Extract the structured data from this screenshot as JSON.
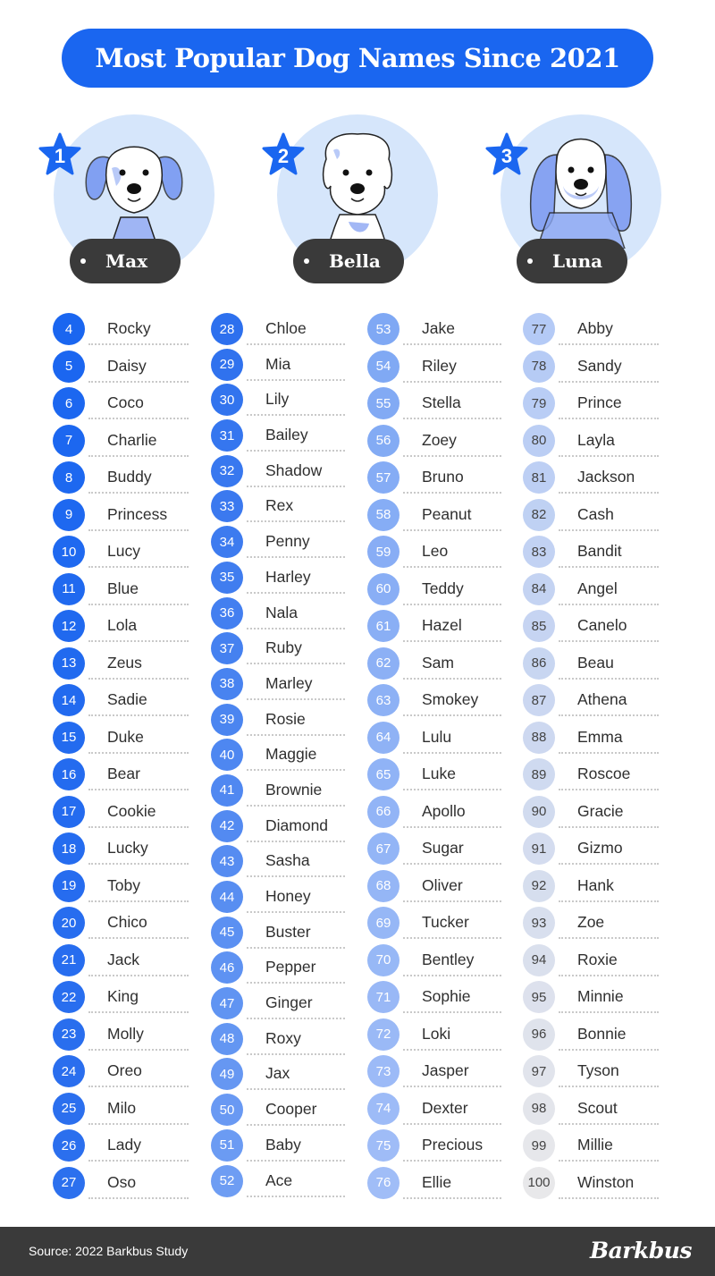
{
  "title": "Most Popular Dog Names Since 2021",
  "top3": [
    {
      "rank": "1",
      "name": "Max"
    },
    {
      "rank": "2",
      "name": "Bella"
    },
    {
      "rank": "3",
      "name": "Luna"
    }
  ],
  "columns": [
    [
      {
        "rank": "4",
        "name": "Rocky"
      },
      {
        "rank": "5",
        "name": "Daisy"
      },
      {
        "rank": "6",
        "name": "Coco"
      },
      {
        "rank": "7",
        "name": "Charlie"
      },
      {
        "rank": "8",
        "name": "Buddy"
      },
      {
        "rank": "9",
        "name": "Princess"
      },
      {
        "rank": "10",
        "name": "Lucy"
      },
      {
        "rank": "11",
        "name": "Blue"
      },
      {
        "rank": "12",
        "name": "Lola"
      },
      {
        "rank": "13",
        "name": "Zeus"
      },
      {
        "rank": "14",
        "name": "Sadie"
      },
      {
        "rank": "15",
        "name": "Duke"
      },
      {
        "rank": "16",
        "name": "Bear"
      },
      {
        "rank": "17",
        "name": "Cookie"
      },
      {
        "rank": "18",
        "name": "Lucky"
      },
      {
        "rank": "19",
        "name": "Toby"
      },
      {
        "rank": "20",
        "name": "Chico"
      },
      {
        "rank": "21",
        "name": "Jack"
      },
      {
        "rank": "22",
        "name": "King"
      },
      {
        "rank": "23",
        "name": "Molly"
      },
      {
        "rank": "24",
        "name": "Oreo"
      },
      {
        "rank": "25",
        "name": "Milo"
      },
      {
        "rank": "26",
        "name": "Lady"
      },
      {
        "rank": "27",
        "name": "Oso"
      }
    ],
    [
      {
        "rank": "28",
        "name": "Chloe"
      },
      {
        "rank": "29",
        "name": "Mia"
      },
      {
        "rank": "30",
        "name": "Lily"
      },
      {
        "rank": "31",
        "name": "Bailey"
      },
      {
        "rank": "32",
        "name": "Shadow"
      },
      {
        "rank": "33",
        "name": "Rex"
      },
      {
        "rank": "34",
        "name": "Penny"
      },
      {
        "rank": "35",
        "name": "Harley"
      },
      {
        "rank": "36",
        "name": "Nala"
      },
      {
        "rank": "37",
        "name": "Ruby"
      },
      {
        "rank": "38",
        "name": "Marley"
      },
      {
        "rank": "39",
        "name": "Rosie"
      },
      {
        "rank": "40",
        "name": "Maggie"
      },
      {
        "rank": "41",
        "name": "Brownie"
      },
      {
        "rank": "42",
        "name": "Diamond"
      },
      {
        "rank": "43",
        "name": "Sasha"
      },
      {
        "rank": "44",
        "name": "Honey"
      },
      {
        "rank": "45",
        "name": "Buster"
      },
      {
        "rank": "46",
        "name": "Pepper"
      },
      {
        "rank": "47",
        "name": "Ginger"
      },
      {
        "rank": "48",
        "name": "Roxy"
      },
      {
        "rank": "49",
        "name": "Jax"
      },
      {
        "rank": "50",
        "name": "Cooper"
      },
      {
        "rank": "51",
        "name": "Baby"
      },
      {
        "rank": "52",
        "name": "Ace"
      }
    ],
    [
      {
        "rank": "53",
        "name": "Jake"
      },
      {
        "rank": "54",
        "name": "Riley"
      },
      {
        "rank": "55",
        "name": "Stella"
      },
      {
        "rank": "56",
        "name": "Zoey"
      },
      {
        "rank": "57",
        "name": "Bruno"
      },
      {
        "rank": "58",
        "name": "Peanut"
      },
      {
        "rank": "59",
        "name": "Leo"
      },
      {
        "rank": "60",
        "name": "Teddy"
      },
      {
        "rank": "61",
        "name": "Hazel"
      },
      {
        "rank": "62",
        "name": "Sam"
      },
      {
        "rank": "63",
        "name": "Smokey"
      },
      {
        "rank": "64",
        "name": "Lulu"
      },
      {
        "rank": "65",
        "name": "Luke"
      },
      {
        "rank": "66",
        "name": "Apollo"
      },
      {
        "rank": "67",
        "name": "Sugar"
      },
      {
        "rank": "68",
        "name": "Oliver"
      },
      {
        "rank": "69",
        "name": "Tucker"
      },
      {
        "rank": "70",
        "name": "Bentley"
      },
      {
        "rank": "71",
        "name": "Sophie"
      },
      {
        "rank": "72",
        "name": "Loki"
      },
      {
        "rank": "73",
        "name": "Jasper"
      },
      {
        "rank": "74",
        "name": "Dexter"
      },
      {
        "rank": "75",
        "name": "Precious"
      },
      {
        "rank": "76",
        "name": "Ellie"
      }
    ],
    [
      {
        "rank": "77",
        "name": "Abby"
      },
      {
        "rank": "78",
        "name": "Sandy"
      },
      {
        "rank": "79",
        "name": "Prince"
      },
      {
        "rank": "80",
        "name": "Layla"
      },
      {
        "rank": "81",
        "name": "Jackson"
      },
      {
        "rank": "82",
        "name": "Cash"
      },
      {
        "rank": "83",
        "name": "Bandit"
      },
      {
        "rank": "84",
        "name": "Angel"
      },
      {
        "rank": "85",
        "name": "Canelo"
      },
      {
        "rank": "86",
        "name": "Beau"
      },
      {
        "rank": "87",
        "name": "Athena"
      },
      {
        "rank": "88",
        "name": "Emma"
      },
      {
        "rank": "89",
        "name": "Roscoe"
      },
      {
        "rank": "90",
        "name": "Gracie"
      },
      {
        "rank": "91",
        "name": "Gizmo"
      },
      {
        "rank": "92",
        "name": "Hank"
      },
      {
        "rank": "93",
        "name": "Zoe"
      },
      {
        "rank": "94",
        "name": "Roxie"
      },
      {
        "rank": "95",
        "name": "Minnie"
      },
      {
        "rank": "96",
        "name": "Bonnie"
      },
      {
        "rank": "97",
        "name": "Tyson"
      },
      {
        "rank": "98",
        "name": "Scout"
      },
      {
        "rank": "99",
        "name": "Millie"
      },
      {
        "rank": "100",
        "name": "Winston"
      }
    ]
  ],
  "footer": {
    "source": "Source: 2022 Barkbus Study",
    "brand": "Barkbus"
  },
  "colors": {
    "accent": "#1a66f0",
    "pill": "#3a3a3a",
    "circle": "#d6e6fb"
  },
  "icons": [
    "star-icon",
    "dog-illustration-icon"
  ]
}
